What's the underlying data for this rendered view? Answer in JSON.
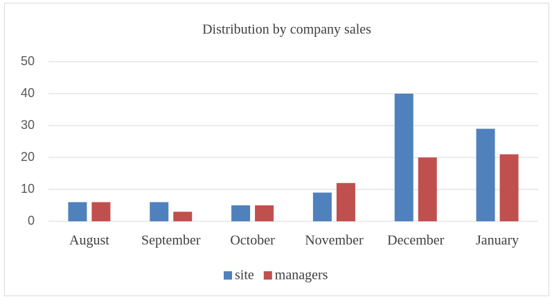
{
  "chart_data": {
    "type": "bar",
    "title": "Distribution by company sales",
    "categories": [
      "August",
      "September",
      "October",
      "November",
      "December",
      "January"
    ],
    "series": [
      {
        "name": "site",
        "color": "#4f81bd",
        "values": [
          6,
          6,
          5,
          9,
          40,
          29
        ]
      },
      {
        "name": "managers",
        "color": "#c0504d",
        "values": [
          6,
          3,
          5,
          12,
          20,
          21
        ]
      }
    ],
    "ylim": [
      0,
      50
    ],
    "yticks": [
      0,
      10,
      20,
      30,
      40,
      50
    ],
    "grid": true,
    "legend": "bottom"
  }
}
